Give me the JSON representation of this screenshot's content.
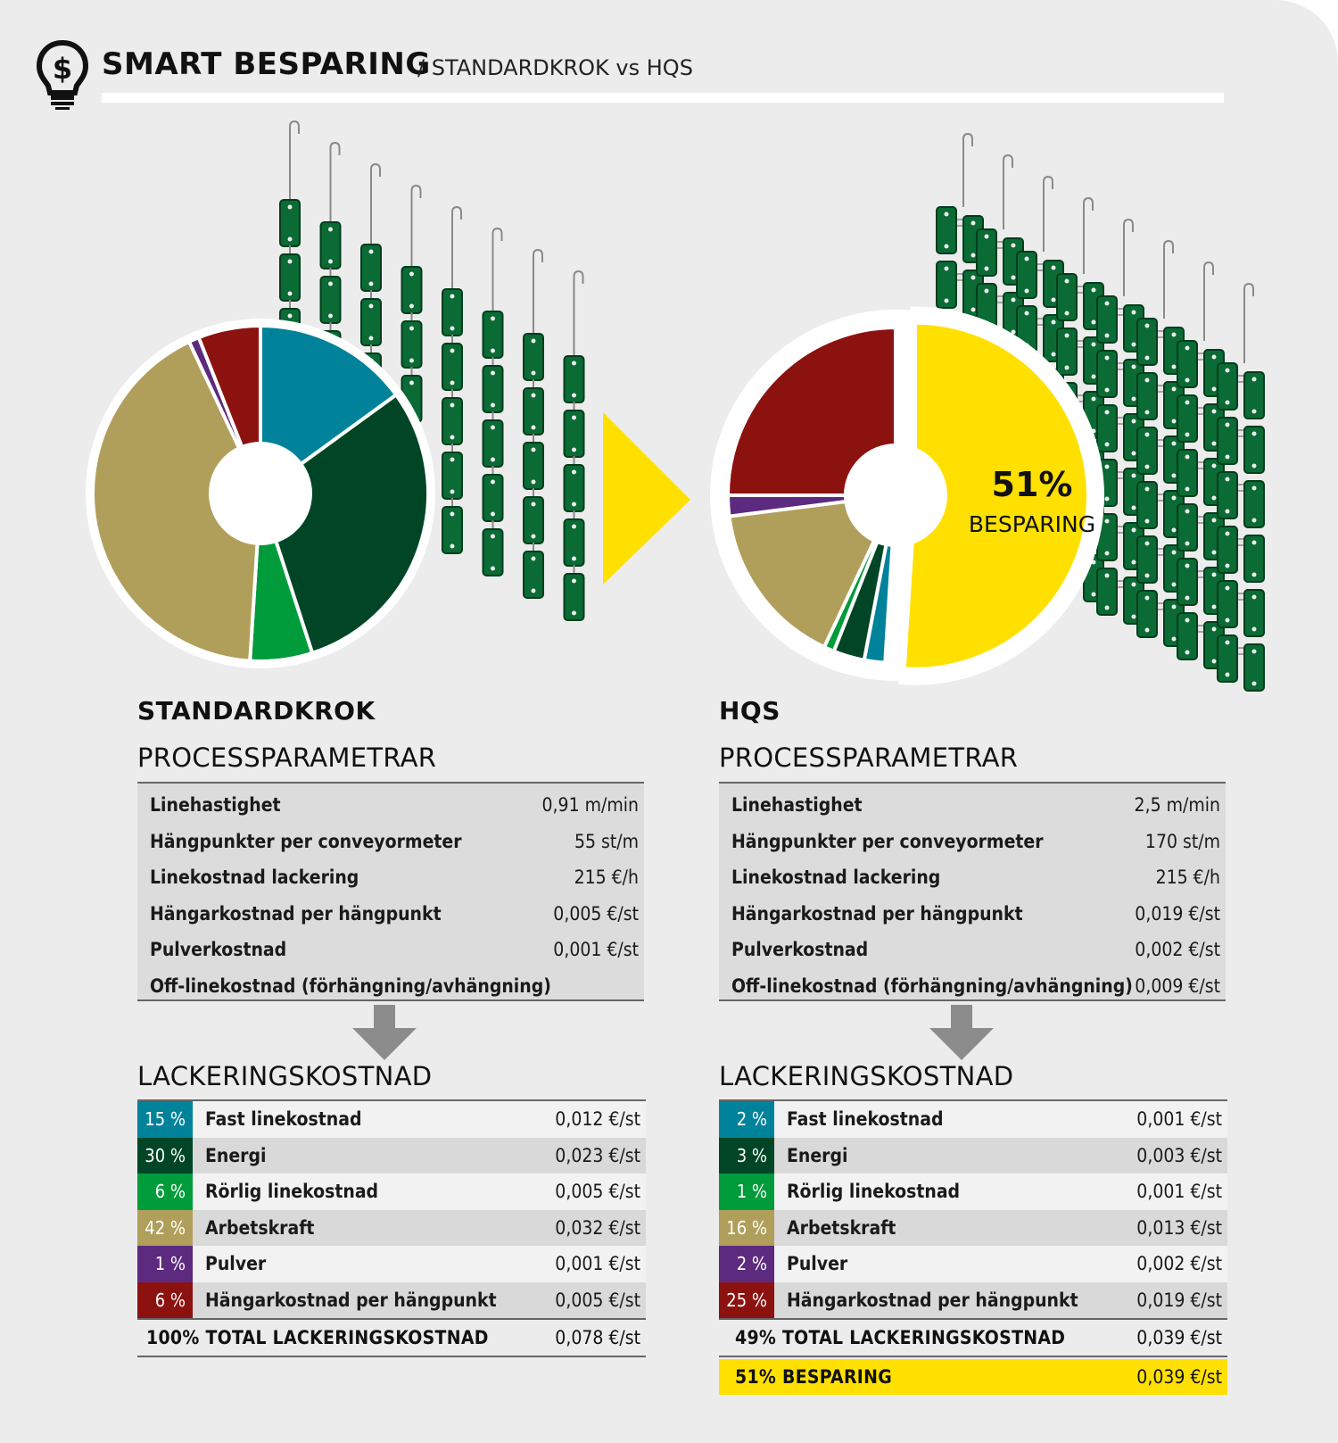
{
  "header": {
    "title": "SMART BESPARING",
    "subtitle": "/ STANDARDKROK vs HQS"
  },
  "left": {
    "title": "STANDARDKROK",
    "params_title": "PROCESSPARAMETRAR",
    "params": [
      {
        "label": "Linehastighet",
        "value": "0,91 m/min"
      },
      {
        "label": "Hängpunkter per conveyormeter",
        "value": "55 st/m"
      },
      {
        "label": "Linekostnad lackering",
        "value": "215 €/h"
      },
      {
        "label": "Hängarkostnad per hängpunkt",
        "value": "0,005 €/st"
      },
      {
        "label": "Pulverkostnad",
        "value": "0,001 €/st"
      },
      {
        "label": "Off-linekostnad (förhängning/avhängning)",
        "value": ""
      }
    ],
    "costs_title": "LACKERINGSKOSTNAD",
    "costs": [
      {
        "pct": "15 %",
        "label": "Fast linekostnad",
        "value": "0,012 €/st",
        "color": "#00829b"
      },
      {
        "pct": "30 %",
        "label": "Energi",
        "value": "0,023 €/st",
        "color": "#004526"
      },
      {
        "pct": "6 %",
        "label": "Rörlig linekostnad",
        "value": "0,005 €/st",
        "color": "#009b3a"
      },
      {
        "pct": "42 %",
        "label": "Arbetskraft",
        "value": "0,032 €/st",
        "color": "#b09f5b"
      },
      {
        "pct": "1 %",
        "label": "Pulver",
        "value": "0,001 €/st",
        "color": "#5c2a7e"
      },
      {
        "pct": "6 %",
        "label": "Hängarkostnad per hängpunkt",
        "value": "0,005 €/st",
        "color": "#8c1210"
      }
    ],
    "total": {
      "label": "100%  TOTAL LACKERINGSKOSTNAD",
      "value": "0,078 €/st"
    }
  },
  "right": {
    "title": "HQS",
    "params_title": "PROCESSPARAMETRAR",
    "params": [
      {
        "label": "Linehastighet",
        "value": "2,5 m/min"
      },
      {
        "label": "Hängpunkter per conveyormeter",
        "value": "170 st/m"
      },
      {
        "label": "Linekostnad lackering",
        "value": "215 €/h"
      },
      {
        "label": "Hängarkostnad per hängpunkt",
        "value": "0,019 €/st"
      },
      {
        "label": "Pulverkostnad",
        "value": "0,002 €/st"
      },
      {
        "label": "Off-linekostnad (förhängning/avhängning)",
        "value": "0,009 €/st"
      }
    ],
    "costs_title": "LACKERINGSKOSTNAD",
    "costs": [
      {
        "pct": "2 %",
        "label": "Fast linekostnad",
        "value": "0,001 €/st",
        "color": "#00829b"
      },
      {
        "pct": "3 %",
        "label": "Energi",
        "value": "0,003 €/st",
        "color": "#004526"
      },
      {
        "pct": "1 %",
        "label": "Rörlig linekostnad",
        "value": "0,001 €/st",
        "color": "#009b3a"
      },
      {
        "pct": "16 %",
        "label": "Arbetskraft",
        "value": "0,013 €/st",
        "color": "#b09f5b"
      },
      {
        "pct": "2 %",
        "label": "Pulver",
        "value": "0,002 €/st",
        "color": "#5c2a7e"
      },
      {
        "pct": "25 %",
        "label": "Hängarkostnad per hängpunkt",
        "value": "0,019 €/st",
        "color": "#8c1210"
      }
    ],
    "total": {
      "label": "49% TOTAL LACKERINGSKOSTNAD",
      "value": "0,039 €/st"
    },
    "saving": {
      "label": "51% BESPARING",
      "value": "0,039 €/st"
    }
  },
  "chart_data": [
    {
      "type": "pie",
      "categories": [
        "Fast linekostnad",
        "Energi",
        "Rörlig linekostnad",
        "Arbetskraft",
        "Pulver",
        "Hängarkostnad per hängpunkt"
      ],
      "values": [
        15,
        30,
        6,
        42,
        1,
        6
      ],
      "colors": [
        "#00829b",
        "#004526",
        "#009b3a",
        "#b09f5b",
        "#5c2a7e",
        "#8c1210"
      ]
    },
    {
      "type": "pie",
      "categories": [
        "BESPARING",
        "Fast linekostnad",
        "Energi",
        "Rörlig linekostnad",
        "Arbetskraft",
        "Pulver",
        "Hängarkostnad per hängpunkt"
      ],
      "values": [
        51,
        2,
        3,
        1,
        16,
        2,
        25
      ],
      "colors": [
        "#ffe000",
        "#00829b",
        "#004526",
        "#009b3a",
        "#b09f5b",
        "#5c2a7e",
        "#8c1210"
      ],
      "center_label": [
        "51%",
        "BESPARING"
      ]
    }
  ],
  "colors": {
    "background": "#ececec",
    "accent_yellow": "#ffe000",
    "hanger_green": "#0a6b35"
  }
}
